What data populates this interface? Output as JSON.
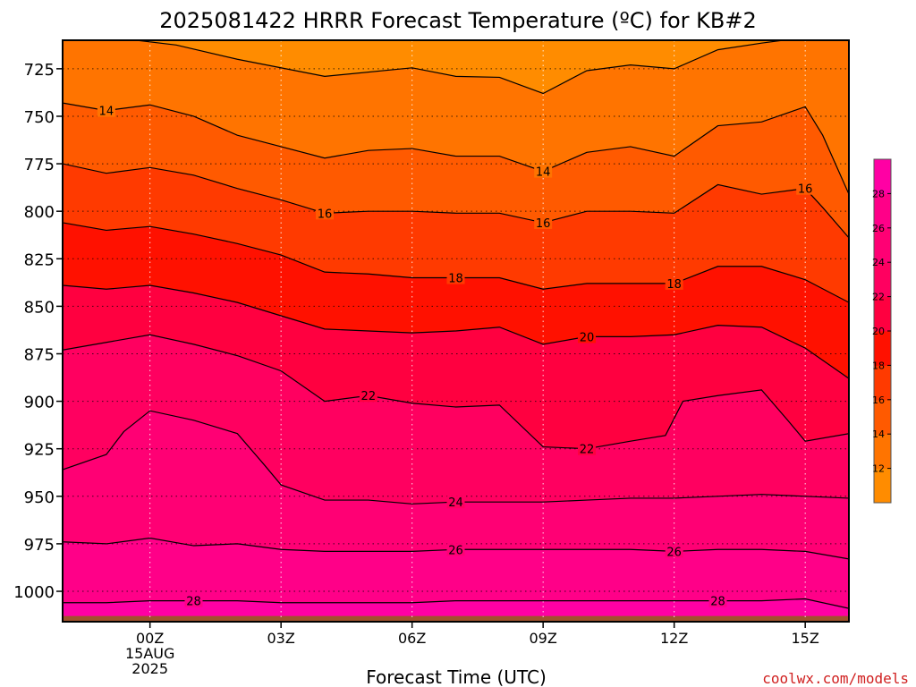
{
  "title": "2025081422 HRRR Forecast Temperature (ºC) for KB#2",
  "credit": "coolwx.com/models",
  "chart_data": {
    "type": "contour",
    "title": "2025081422 HRRR Forecast Temperature (ºC) for KB#2",
    "xlabel": "Forecast Time (UTC)",
    "ylabel": "",
    "x_ticks": [
      {
        "hour": 0,
        "label": "00Z",
        "sub": [
          "15AUG",
          "2025"
        ]
      },
      {
        "hour": 3,
        "label": "03Z",
        "sub": []
      },
      {
        "hour": 6,
        "label": "06Z",
        "sub": []
      },
      {
        "hour": 9,
        "label": "09Z",
        "sub": []
      },
      {
        "hour": 12,
        "label": "12Z",
        "sub": []
      },
      {
        "hour": 15,
        "label": "15Z",
        "sub": []
      }
    ],
    "xlim": [
      -2,
      16
    ],
    "y_ticks": [
      725,
      750,
      775,
      800,
      825,
      850,
      875,
      900,
      925,
      950,
      975,
      1000
    ],
    "ylim_hpa": [
      710,
      1016
    ],
    "surface_pressure_hpa": 1013,
    "grid": true,
    "colorbar": {
      "levels": [
        10,
        12,
        14,
        16,
        18,
        20,
        22,
        24,
        26,
        28,
        30
      ],
      "tick_labels": [
        12,
        14,
        16,
        18,
        20,
        22,
        24,
        26,
        28
      ],
      "colors": [
        "#ff8c00",
        "#ff7400",
        "#ff5a00",
        "#ff3a00",
        "#ff1100",
        "#ff0040",
        "#ff0060",
        "#ff0074",
        "#ff0088",
        "#ff00a4"
      ]
    },
    "contours": [
      {
        "level": 12,
        "points": [
          [
            -0.5,
            709.5
          ],
          [
            0.6,
            712.5
          ],
          [
            2,
            720
          ],
          [
            4,
            729
          ],
          [
            6,
            724.5
          ],
          [
            7,
            729
          ],
          [
            8,
            729.5
          ],
          [
            9,
            738
          ],
          [
            10,
            726
          ],
          [
            11,
            723
          ],
          [
            12,
            725
          ],
          [
            13,
            715
          ],
          [
            14,
            711.5
          ],
          [
            15,
            708.5
          ]
        ],
        "labels": []
      },
      {
        "level": 14,
        "points": [
          [
            -2,
            743
          ],
          [
            -1,
            747
          ],
          [
            0,
            744
          ],
          [
            1,
            750
          ],
          [
            2,
            760
          ],
          [
            3,
            766
          ],
          [
            4,
            772
          ],
          [
            5,
            768
          ],
          [
            6,
            767
          ],
          [
            7,
            771
          ],
          [
            8,
            771
          ],
          [
            9,
            779
          ],
          [
            10,
            769
          ],
          [
            11,
            766
          ],
          [
            12,
            771
          ],
          [
            13,
            755
          ],
          [
            14,
            753
          ],
          [
            15,
            745
          ],
          [
            15.4,
            760
          ],
          [
            16,
            791
          ]
        ],
        "labels": [
          {
            "hour": -1,
            "hpa": 747,
            "text": "14"
          },
          {
            "hour": 9,
            "hpa": 779,
            "text": "14"
          }
        ]
      },
      {
        "level": 16,
        "points": [
          [
            -2,
            775
          ],
          [
            -1,
            780
          ],
          [
            0,
            777
          ],
          [
            1,
            781
          ],
          [
            2,
            788
          ],
          [
            3,
            794
          ],
          [
            4,
            801
          ],
          [
            5,
            800
          ],
          [
            6,
            800
          ],
          [
            7,
            801
          ],
          [
            8,
            801
          ],
          [
            9,
            806
          ],
          [
            10,
            800
          ],
          [
            11,
            800
          ],
          [
            12,
            801
          ],
          [
            13,
            786
          ],
          [
            14,
            791
          ],
          [
            15,
            788
          ],
          [
            15.4,
            798
          ],
          [
            16,
            814
          ]
        ],
        "labels": [
          {
            "hour": 4,
            "hpa": 801,
            "text": "16"
          },
          {
            "hour": 9,
            "hpa": 806,
            "text": "16"
          },
          {
            "hour": 15,
            "hpa": 788,
            "text": "16"
          }
        ]
      },
      {
        "level": 18,
        "points": [
          [
            -2,
            806
          ],
          [
            -1,
            810
          ],
          [
            0,
            808
          ],
          [
            1,
            812
          ],
          [
            2,
            817
          ],
          [
            3,
            823
          ],
          [
            4,
            832
          ],
          [
            5,
            833
          ],
          [
            6,
            835
          ],
          [
            7,
            835
          ],
          [
            8,
            835
          ],
          [
            9,
            841
          ],
          [
            10,
            838
          ],
          [
            11,
            838
          ],
          [
            12,
            838
          ],
          [
            13,
            829
          ],
          [
            14,
            829
          ],
          [
            15,
            836
          ],
          [
            16,
            848
          ]
        ],
        "labels": [
          {
            "hour": 7,
            "hpa": 835,
            "text": "18"
          },
          {
            "hour": 12,
            "hpa": 838,
            "text": "18"
          }
        ]
      },
      {
        "level": 20,
        "points": [
          [
            -2,
            839
          ],
          [
            -1,
            841
          ],
          [
            0,
            839
          ],
          [
            1,
            843
          ],
          [
            2,
            848
          ],
          [
            3,
            855
          ],
          [
            4,
            862
          ],
          [
            5,
            863
          ],
          [
            6,
            864
          ],
          [
            7,
            863
          ],
          [
            8,
            861
          ],
          [
            9,
            870
          ],
          [
            10,
            866
          ],
          [
            11,
            866
          ],
          [
            12,
            865
          ],
          [
            13,
            860
          ],
          [
            14,
            861
          ],
          [
            15,
            872
          ],
          [
            16,
            888
          ]
        ],
        "labels": [
          {
            "hour": 10,
            "hpa": 866,
            "text": "20"
          }
        ]
      },
      {
        "level": 22,
        "points": [
          [
            -2,
            873
          ],
          [
            -1,
            869
          ],
          [
            0,
            865
          ],
          [
            1,
            870
          ],
          [
            2,
            876
          ],
          [
            3,
            884
          ],
          [
            4,
            900
          ],
          [
            5,
            897
          ],
          [
            6,
            901
          ],
          [
            7,
            903
          ],
          [
            8,
            902
          ],
          [
            9,
            924
          ],
          [
            10,
            925
          ],
          [
            11,
            921
          ],
          [
            11.8,
            918
          ],
          [
            12.2,
            900
          ],
          [
            13,
            897
          ],
          [
            14,
            894
          ],
          [
            14.6,
            910
          ],
          [
            15,
            921
          ],
          [
            16,
            917
          ]
        ],
        "labels": [
          {
            "hour": 5,
            "hpa": 897,
            "text": "22"
          },
          {
            "hour": 10,
            "hpa": 925,
            "text": "22"
          }
        ]
      },
      {
        "level": 24,
        "points": [
          [
            -2,
            936
          ],
          [
            -1,
            928
          ],
          [
            -0.6,
            916
          ],
          [
            0,
            905
          ],
          [
            1,
            910
          ],
          [
            2,
            917
          ],
          [
            2.6,
            933
          ],
          [
            3,
            944
          ],
          [
            4,
            952
          ],
          [
            5,
            952
          ],
          [
            6,
            954
          ],
          [
            7,
            953
          ],
          [
            8,
            953
          ],
          [
            9,
            953
          ],
          [
            10,
            952
          ],
          [
            11,
            951
          ],
          [
            12,
            951
          ],
          [
            13,
            950
          ],
          [
            14,
            949
          ],
          [
            15,
            950
          ],
          [
            16,
            951
          ]
        ],
        "labels": [
          {
            "hour": 7,
            "hpa": 953,
            "text": "24"
          }
        ]
      },
      {
        "level": 26,
        "points": [
          [
            -2,
            974
          ],
          [
            -1,
            975
          ],
          [
            0,
            972
          ],
          [
            1,
            976
          ],
          [
            2,
            975
          ],
          [
            3,
            978
          ],
          [
            4,
            979
          ],
          [
            5,
            979
          ],
          [
            6,
            979
          ],
          [
            7,
            978
          ],
          [
            8,
            978
          ],
          [
            9,
            978
          ],
          [
            10,
            978
          ],
          [
            11,
            978
          ],
          [
            12,
            979
          ],
          [
            13,
            978
          ],
          [
            14,
            978
          ],
          [
            15,
            979
          ],
          [
            16,
            983
          ]
        ],
        "labels": [
          {
            "hour": 7,
            "hpa": 978,
            "text": "26"
          },
          {
            "hour": 12,
            "hpa": 979,
            "text": "26"
          }
        ]
      },
      {
        "level": 28,
        "points": [
          [
            -2,
            1006
          ],
          [
            -1,
            1006
          ],
          [
            0,
            1005
          ],
          [
            1,
            1005
          ],
          [
            2,
            1005
          ],
          [
            3,
            1006
          ],
          [
            4,
            1006
          ],
          [
            5,
            1006
          ],
          [
            6,
            1006
          ],
          [
            7,
            1005
          ],
          [
            8,
            1005
          ],
          [
            9,
            1005
          ],
          [
            10,
            1005
          ],
          [
            11,
            1005
          ],
          [
            12,
            1005
          ],
          [
            13,
            1005
          ],
          [
            14,
            1005
          ],
          [
            15,
            1004
          ],
          [
            16,
            1009
          ]
        ],
        "labels": [
          {
            "hour": 1,
            "hpa": 1005,
            "text": "28"
          },
          {
            "hour": 13,
            "hpa": 1005,
            "text": "28"
          }
        ]
      }
    ]
  }
}
